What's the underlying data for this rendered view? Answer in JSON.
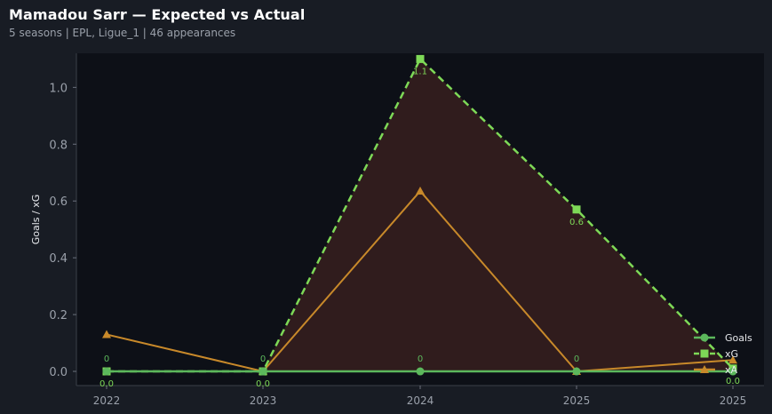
{
  "header": {
    "title": "Mamadou Sarr — Expected vs Actual",
    "subtitle": "5 seasons | EPL, Ligue_1 | 46 appearances"
  },
  "colors": {
    "page_bg": "#181c24",
    "plot_bg": "#0d1017",
    "goals": "#5cb85c",
    "xg": "#7ed957",
    "xa": "#c8892a",
    "fill": "#3a1f1f",
    "axis_text": "#9aa0aa"
  },
  "chart_data": {
    "type": "line",
    "x": [
      "2022",
      "2023",
      "2024",
      "2025",
      "2025"
    ],
    "ylabel": "Goals / xG",
    "ylim": [
      -0.05,
      1.12
    ],
    "yticks": [
      "0.0",
      "0.2",
      "0.4",
      "0.6",
      "0.8",
      "1.0"
    ],
    "grid": false,
    "legend_position": "bottom-right",
    "series": [
      {
        "name": "Goals",
        "values": [
          0,
          0,
          0,
          0,
          0
        ],
        "labels": [
          "0",
          "0",
          "0",
          "0",
          ""
        ]
      },
      {
        "name": "xG",
        "values": [
          0.0,
          0.0,
          1.1,
          0.57,
          0.01
        ],
        "labels": [
          "0.0",
          "0.0",
          "1.1",
          "0.6",
          "0.0"
        ]
      },
      {
        "name": "xA",
        "values": [
          0.13,
          0.0,
          0.635,
          0.0,
          0.04
        ]
      }
    ]
  }
}
